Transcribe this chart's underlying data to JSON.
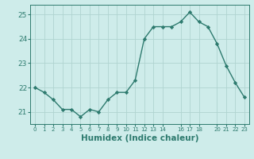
{
  "x": [
    0,
    1,
    2,
    3,
    4,
    5,
    6,
    7,
    8,
    9,
    10,
    11,
    12,
    13,
    14,
    15,
    16,
    17,
    18,
    19,
    20,
    21,
    22,
    23
  ],
  "y": [
    22.0,
    21.8,
    21.5,
    21.1,
    21.1,
    20.8,
    21.1,
    21.0,
    21.5,
    21.8,
    21.8,
    22.3,
    24.0,
    24.5,
    24.5,
    24.5,
    24.7,
    25.1,
    24.7,
    24.5,
    23.8,
    22.9,
    22.2,
    21.6
  ],
  "line_color": "#2d7a6e",
  "marker": "D",
  "marker_size": 2.2,
  "bg_color": "#ceecea",
  "grid_color": "#b0d4d0",
  "tick_color": "#2d7a6e",
  "xlabel": "Humidex (Indice chaleur)",
  "xlabel_fontsize": 7.5,
  "ylim": [
    20.5,
    25.4
  ],
  "yticks": [
    21,
    22,
    23,
    24,
    25
  ],
  "xlim": [
    -0.5,
    23.5
  ],
  "xtick_positions": [
    0,
    1,
    2,
    3,
    4,
    5,
    6,
    7,
    8,
    9,
    10,
    11,
    12,
    13,
    14,
    16,
    17,
    18,
    20,
    21,
    22,
    23
  ],
  "xtick_labels": [
    "0",
    "1",
    "2",
    "3",
    "4",
    "5",
    "6",
    "7",
    "8",
    "9",
    "10",
    "11",
    "12",
    "13",
    "14",
    "16",
    "17",
    "18",
    "20",
    "21",
    "22",
    "23"
  ],
  "line_width": 1.0
}
